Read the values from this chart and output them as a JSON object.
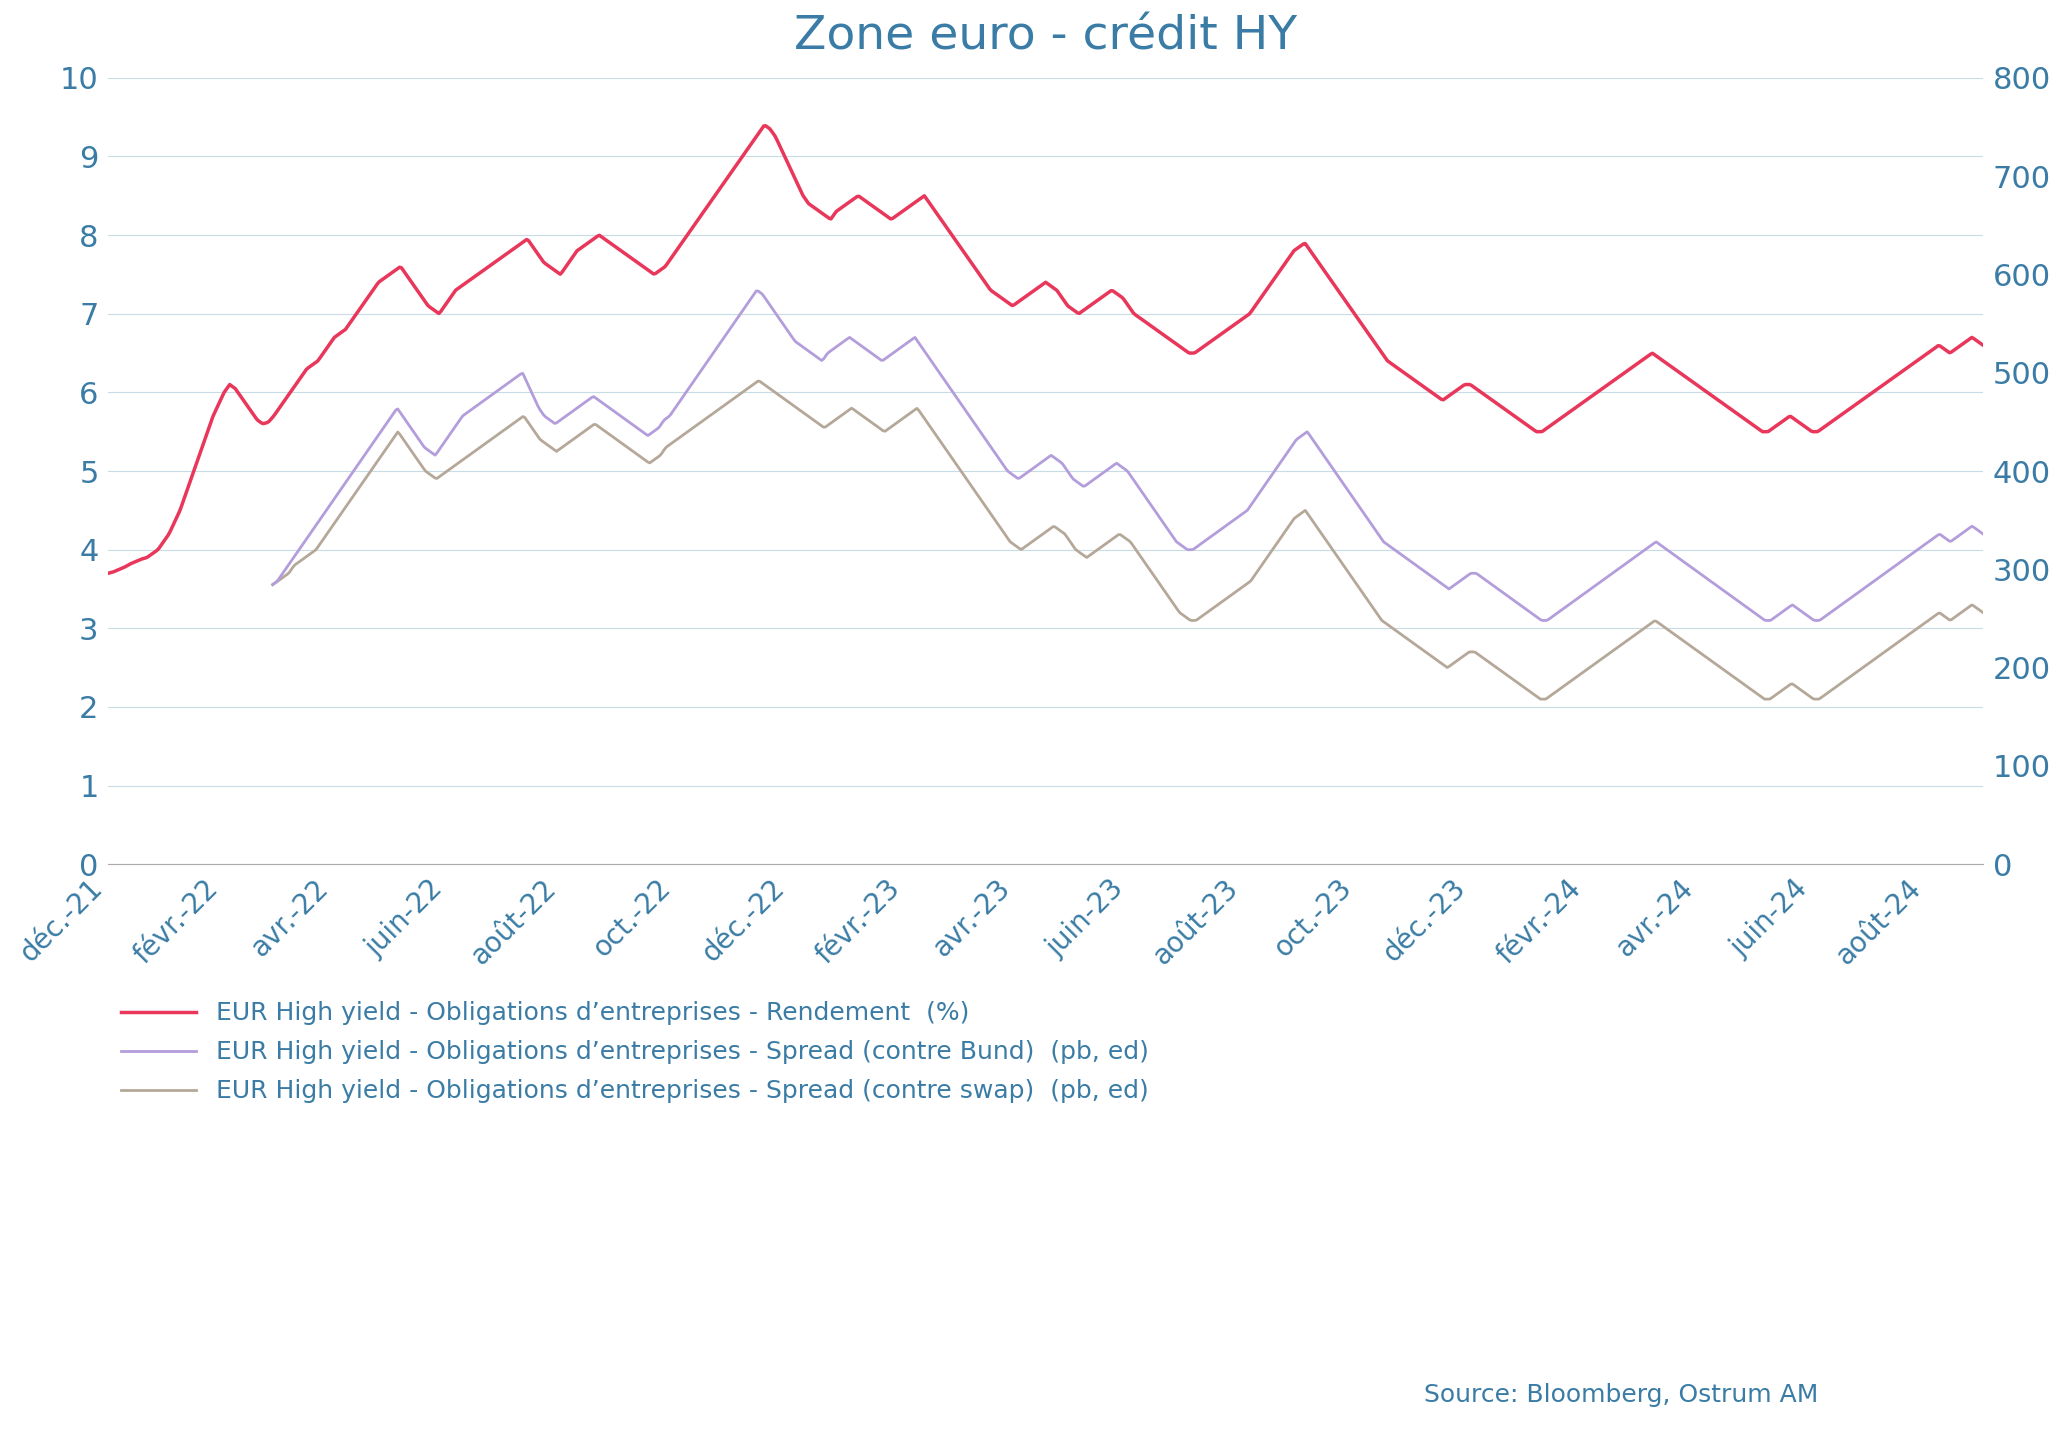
{
  "title": "Zone euro - crédit HY",
  "title_color": "#3a7ca5",
  "background_color": "#ffffff",
  "left_ylim": [
    0,
    10
  ],
  "right_ylim": [
    0,
    800
  ],
  "grid_color": "#c8dce8",
  "axis_color": "#3a7ca5",
  "source_text": "Source: Bloomberg, Ostrum AM",
  "rendement_color": "#e8375a",
  "bund_color": "#b39ddb",
  "swap_color": "#b5a898",
  "rendement_lw": 2.5,
  "bund_lw": 2.0,
  "swap_lw": 2.0,
  "legend_labels": [
    "EUR High yield - Obligations d’entreprises - Rendement  (%)",
    "EUR High yield - Obligations d’entreprises - Spread (contre Bund)  (pb, ed)",
    "EUR High yield - Obligations d’entreprises - Spread (contre swap)  (pb, ed)"
  ],
  "x_tick_labels": [
    "déc.-21",
    "févr.-22",
    "avr.-22",
    "juin-22",
    "août-22",
    "oct.-22",
    "déc.-22",
    "févr.-23",
    "avr.-23",
    "juin-23",
    "août-23",
    "oct.-23",
    "déc.-23",
    "févr.-24",
    "avr.-24",
    "juin-24",
    "août-24"
  ],
  "x_tick_positions": [
    0,
    62,
    121,
    181,
    242,
    303,
    365,
    427,
    486,
    546,
    608,
    669,
    731,
    793,
    852,
    912,
    973
  ],
  "rendement": [
    3.7,
    3.72,
    3.75,
    3.78,
    3.82,
    3.85,
    3.88,
    3.9,
    3.95,
    4.0,
    4.1,
    4.2,
    4.35,
    4.5,
    4.7,
    4.9,
    5.1,
    5.3,
    5.5,
    5.7,
    5.85,
    6.0,
    6.1,
    6.05,
    5.95,
    5.85,
    5.75,
    5.65,
    5.6,
    5.62,
    5.7,
    5.8,
    5.9,
    6.0,
    6.1,
    6.2,
    6.3,
    6.35,
    6.4,
    6.5,
    6.6,
    6.7,
    6.75,
    6.8,
    6.9,
    7.0,
    7.1,
    7.2,
    7.3,
    7.4,
    7.45,
    7.5,
    7.55,
    7.6,
    7.5,
    7.4,
    7.3,
    7.2,
    7.1,
    7.05,
    7.0,
    7.1,
    7.2,
    7.3,
    7.35,
    7.4,
    7.45,
    7.5,
    7.55,
    7.6,
    7.65,
    7.7,
    7.75,
    7.8,
    7.85,
    7.9,
    7.95,
    7.85,
    7.75,
    7.65,
    7.6,
    7.55,
    7.5,
    7.6,
    7.7,
    7.8,
    7.85,
    7.9,
    7.95,
    8.0,
    7.95,
    7.9,
    7.85,
    7.8,
    7.75,
    7.7,
    7.65,
    7.6,
    7.55,
    7.5,
    7.55,
    7.6,
    7.7,
    7.8,
    7.9,
    8.0,
    8.1,
    8.2,
    8.3,
    8.4,
    8.5,
    8.6,
    8.7,
    8.8,
    8.9,
    9.0,
    9.1,
    9.2,
    9.3,
    9.4,
    9.35,
    9.25,
    9.1,
    8.95,
    8.8,
    8.65,
    8.5,
    8.4,
    8.35,
    8.3,
    8.25,
    8.2,
    8.3,
    8.35,
    8.4,
    8.45,
    8.5,
    8.45,
    8.4,
    8.35,
    8.3,
    8.25,
    8.2,
    8.25,
    8.3,
    8.35,
    8.4,
    8.45,
    8.5,
    8.4,
    8.3,
    8.2,
    8.1,
    8.0,
    7.9,
    7.8,
    7.7,
    7.6,
    7.5,
    7.4,
    7.3,
    7.25,
    7.2,
    7.15,
    7.1,
    7.15,
    7.2,
    7.25,
    7.3,
    7.35,
    7.4,
    7.35,
    7.3,
    7.2,
    7.1,
    7.05,
    7.0,
    7.05,
    7.1,
    7.15,
    7.2,
    7.25,
    7.3,
    7.25,
    7.2,
    7.1,
    7.0,
    6.95,
    6.9,
    6.85,
    6.8,
    6.75,
    6.7,
    6.65,
    6.6,
    6.55,
    6.5,
    6.5,
    6.55,
    6.6,
    6.65,
    6.7,
    6.75,
    6.8,
    6.85,
    6.9,
    6.95,
    7.0,
    7.1,
    7.2,
    7.3,
    7.4,
    7.5,
    7.6,
    7.7,
    7.8,
    7.85,
    7.9,
    7.8,
    7.7,
    7.6,
    7.5,
    7.4,
    7.3,
    7.2,
    7.1,
    7.0,
    6.9,
    6.8,
    6.7,
    6.6,
    6.5,
    6.4,
    6.35,
    6.3,
    6.25,
    6.2,
    6.15,
    6.1,
    6.05,
    6.0,
    5.95,
    5.9,
    5.95,
    6.0,
    6.05,
    6.1,
    6.1,
    6.05,
    6.0,
    5.95,
    5.9,
    5.85,
    5.8,
    5.75,
    5.7,
    5.65,
    5.6,
    5.55,
    5.5,
    5.5,
    5.55,
    5.6,
    5.65,
    5.7,
    5.75,
    5.8,
    5.85,
    5.9,
    5.95,
    6.0,
    6.05,
    6.1,
    6.15,
    6.2,
    6.25,
    6.3,
    6.35,
    6.4,
    6.45,
    6.5,
    6.45,
    6.4,
    6.35,
    6.3,
    6.25,
    6.2,
    6.15,
    6.1,
    6.05,
    6.0,
    5.95,
    5.9,
    5.85,
    5.8,
    5.75,
    5.7,
    5.65,
    5.6,
    5.55,
    5.5,
    5.5,
    5.55,
    5.6,
    5.65,
    5.7,
    5.65,
    5.6,
    5.55,
    5.5,
    5.5,
    5.55,
    5.6,
    5.65,
    5.7,
    5.75,
    5.8,
    5.85,
    5.9,
    5.95,
    6.0,
    6.05,
    6.1,
    6.15,
    6.2,
    6.25,
    6.3,
    6.35,
    6.4,
    6.45,
    6.5,
    6.55,
    6.6,
    6.55,
    6.5,
    6.55,
    6.6,
    6.65,
    6.7,
    6.65,
    6.6
  ],
  "bund": [
    null,
    null,
    null,
    null,
    null,
    null,
    null,
    null,
    null,
    null,
    null,
    null,
    null,
    null,
    null,
    null,
    null,
    null,
    null,
    null,
    null,
    null,
    null,
    null,
    null,
    null,
    null,
    null,
    null,
    null,
    3.55,
    3.6,
    3.7,
    3.8,
    3.9,
    4.0,
    4.1,
    4.2,
    4.3,
    4.4,
    4.5,
    4.6,
    4.7,
    4.8,
    4.9,
    5.0,
    5.1,
    5.2,
    5.3,
    5.4,
    5.5,
    5.6,
    5.7,
    5.8,
    5.7,
    5.6,
    5.5,
    5.4,
    5.3,
    5.25,
    5.2,
    5.3,
    5.4,
    5.5,
    5.6,
    5.7,
    5.75,
    5.8,
    5.85,
    5.9,
    5.95,
    6.0,
    6.05,
    6.1,
    6.15,
    6.2,
    6.25,
    6.1,
    5.95,
    5.8,
    5.7,
    5.65,
    5.6,
    5.65,
    5.7,
    5.75,
    5.8,
    5.85,
    5.9,
    5.95,
    5.9,
    5.85,
    5.8,
    5.75,
    5.7,
    5.65,
    5.6,
    5.55,
    5.5,
    5.45,
    5.5,
    5.55,
    5.65,
    5.7,
    5.8,
    5.9,
    6.0,
    6.1,
    6.2,
    6.3,
    6.4,
    6.5,
    6.6,
    6.7,
    6.8,
    6.9,
    7.0,
    7.1,
    7.2,
    7.3,
    7.25,
    7.15,
    7.05,
    6.95,
    6.85,
    6.75,
    6.65,
    6.6,
    6.55,
    6.5,
    6.45,
    6.4,
    6.5,
    6.55,
    6.6,
    6.65,
    6.7,
    6.65,
    6.6,
    6.55,
    6.5,
    6.45,
    6.4,
    6.45,
    6.5,
    6.55,
    6.6,
    6.65,
    6.7,
    6.6,
    6.5,
    6.4,
    6.3,
    6.2,
    6.1,
    6.0,
    5.9,
    5.8,
    5.7,
    5.6,
    5.5,
    5.4,
    5.3,
    5.2,
    5.1,
    5.0,
    4.95,
    4.9,
    4.95,
    5.0,
    5.05,
    5.1,
    5.15,
    5.2,
    5.15,
    5.1,
    5.0,
    4.9,
    4.85,
    4.8,
    4.85,
    4.9,
    4.95,
    5.0,
    5.05,
    5.1,
    5.05,
    5.0,
    4.9,
    4.8,
    4.7,
    4.6,
    4.5,
    4.4,
    4.3,
    4.2,
    4.1,
    4.05,
    4.0,
    4.0,
    4.05,
    4.1,
    4.15,
    4.2,
    4.25,
    4.3,
    4.35,
    4.4,
    4.45,
    4.5,
    4.6,
    4.7,
    4.8,
    4.9,
    5.0,
    5.1,
    5.2,
    5.3,
    5.4,
    5.45,
    5.5,
    5.4,
    5.3,
    5.2,
    5.1,
    5.0,
    4.9,
    4.8,
    4.7,
    4.6,
    4.5,
    4.4,
    4.3,
    4.2,
    4.1,
    4.05,
    4.0,
    3.95,
    3.9,
    3.85,
    3.8,
    3.75,
    3.7,
    3.65,
    3.6,
    3.55,
    3.5,
    3.55,
    3.6,
    3.65,
    3.7,
    3.7,
    3.65,
    3.6,
    3.55,
    3.5,
    3.45,
    3.4,
    3.35,
    3.3,
    3.25,
    3.2,
    3.15,
    3.1,
    3.1,
    3.15,
    3.2,
    3.25,
    3.3,
    3.35,
    3.4,
    3.45,
    3.5,
    3.55,
    3.6,
    3.65,
    3.7,
    3.75,
    3.8,
    3.85,
    3.9,
    3.95,
    4.0,
    4.05,
    4.1,
    4.05,
    4.0,
    3.95,
    3.9,
    3.85,
    3.8,
    3.75,
    3.7,
    3.65,
    3.6,
    3.55,
    3.5,
    3.45,
    3.4,
    3.35,
    3.3,
    3.25,
    3.2,
    3.15,
    3.1,
    3.1,
    3.15,
    3.2,
    3.25,
    3.3,
    3.25,
    3.2,
    3.15,
    3.1,
    3.1,
    3.15,
    3.2,
    3.25,
    3.3,
    3.35,
    3.4,
    3.45,
    3.5,
    3.55,
    3.6,
    3.65,
    3.7,
    3.75,
    3.8,
    3.85,
    3.9,
    3.95,
    4.0,
    4.05,
    4.1,
    4.15,
    4.2,
    4.15,
    4.1,
    4.15,
    4.2,
    4.25,
    4.3,
    4.25,
    4.2
  ],
  "swap": [
    null,
    null,
    null,
    null,
    null,
    null,
    null,
    null,
    null,
    null,
    null,
    null,
    null,
    null,
    null,
    null,
    null,
    null,
    null,
    null,
    null,
    null,
    null,
    null,
    null,
    null,
    null,
    null,
    null,
    null,
    3.55,
    3.6,
    3.65,
    3.7,
    3.8,
    3.85,
    3.9,
    3.95,
    4.0,
    4.1,
    4.2,
    4.3,
    4.4,
    4.5,
    4.6,
    4.7,
    4.8,
    4.9,
    5.0,
    5.1,
    5.2,
    5.3,
    5.4,
    5.5,
    5.4,
    5.3,
    5.2,
    5.1,
    5.0,
    4.95,
    4.9,
    4.95,
    5.0,
    5.05,
    5.1,
    5.15,
    5.2,
    5.25,
    5.3,
    5.35,
    5.4,
    5.45,
    5.5,
    5.55,
    5.6,
    5.65,
    5.7,
    5.6,
    5.5,
    5.4,
    5.35,
    5.3,
    5.25,
    5.3,
    5.35,
    5.4,
    5.45,
    5.5,
    5.55,
    5.6,
    5.55,
    5.5,
    5.45,
    5.4,
    5.35,
    5.3,
    5.25,
    5.2,
    5.15,
    5.1,
    5.15,
    5.2,
    5.3,
    5.35,
    5.4,
    5.45,
    5.5,
    5.55,
    5.6,
    5.65,
    5.7,
    5.75,
    5.8,
    5.85,
    5.9,
    5.95,
    6.0,
    6.05,
    6.1,
    6.15,
    6.1,
    6.05,
    6.0,
    5.95,
    5.9,
    5.85,
    5.8,
    5.75,
    5.7,
    5.65,
    5.6,
    5.55,
    5.6,
    5.65,
    5.7,
    5.75,
    5.8,
    5.75,
    5.7,
    5.65,
    5.6,
    5.55,
    5.5,
    5.55,
    5.6,
    5.65,
    5.7,
    5.75,
    5.8,
    5.7,
    5.6,
    5.5,
    5.4,
    5.3,
    5.2,
    5.1,
    5.0,
    4.9,
    4.8,
    4.7,
    4.6,
    4.5,
    4.4,
    4.3,
    4.2,
    4.1,
    4.05,
    4.0,
    4.05,
    4.1,
    4.15,
    4.2,
    4.25,
    4.3,
    4.25,
    4.2,
    4.1,
    4.0,
    3.95,
    3.9,
    3.95,
    4.0,
    4.05,
    4.1,
    4.15,
    4.2,
    4.15,
    4.1,
    4.0,
    3.9,
    3.8,
    3.7,
    3.6,
    3.5,
    3.4,
    3.3,
    3.2,
    3.15,
    3.1,
    3.1,
    3.15,
    3.2,
    3.25,
    3.3,
    3.35,
    3.4,
    3.45,
    3.5,
    3.55,
    3.6,
    3.7,
    3.8,
    3.9,
    4.0,
    4.1,
    4.2,
    4.3,
    4.4,
    4.45,
    4.5,
    4.4,
    4.3,
    4.2,
    4.1,
    4.0,
    3.9,
    3.8,
    3.7,
    3.6,
    3.5,
    3.4,
    3.3,
    3.2,
    3.1,
    3.05,
    3.0,
    2.95,
    2.9,
    2.85,
    2.8,
    2.75,
    2.7,
    2.65,
    2.6,
    2.55,
    2.5,
    2.55,
    2.6,
    2.65,
    2.7,
    2.7,
    2.65,
    2.6,
    2.55,
    2.5,
    2.45,
    2.4,
    2.35,
    2.3,
    2.25,
    2.2,
    2.15,
    2.1,
    2.1,
    2.15,
    2.2,
    2.25,
    2.3,
    2.35,
    2.4,
    2.45,
    2.5,
    2.55,
    2.6,
    2.65,
    2.7,
    2.75,
    2.8,
    2.85,
    2.9,
    2.95,
    3.0,
    3.05,
    3.1,
    3.05,
    3.0,
    2.95,
    2.9,
    2.85,
    2.8,
    2.75,
    2.7,
    2.65,
    2.6,
    2.55,
    2.5,
    2.45,
    2.4,
    2.35,
    2.3,
    2.25,
    2.2,
    2.15,
    2.1,
    2.1,
    2.15,
    2.2,
    2.25,
    2.3,
    2.25,
    2.2,
    2.15,
    2.1,
    2.1,
    2.15,
    2.2,
    2.25,
    2.3,
    2.35,
    2.4,
    2.45,
    2.5,
    2.55,
    2.6,
    2.65,
    2.7,
    2.75,
    2.8,
    2.85,
    2.9,
    2.95,
    3.0,
    3.05,
    3.1,
    3.15,
    3.2,
    3.15,
    3.1,
    3.15,
    3.2,
    3.25,
    3.3,
    3.25,
    3.2
  ]
}
